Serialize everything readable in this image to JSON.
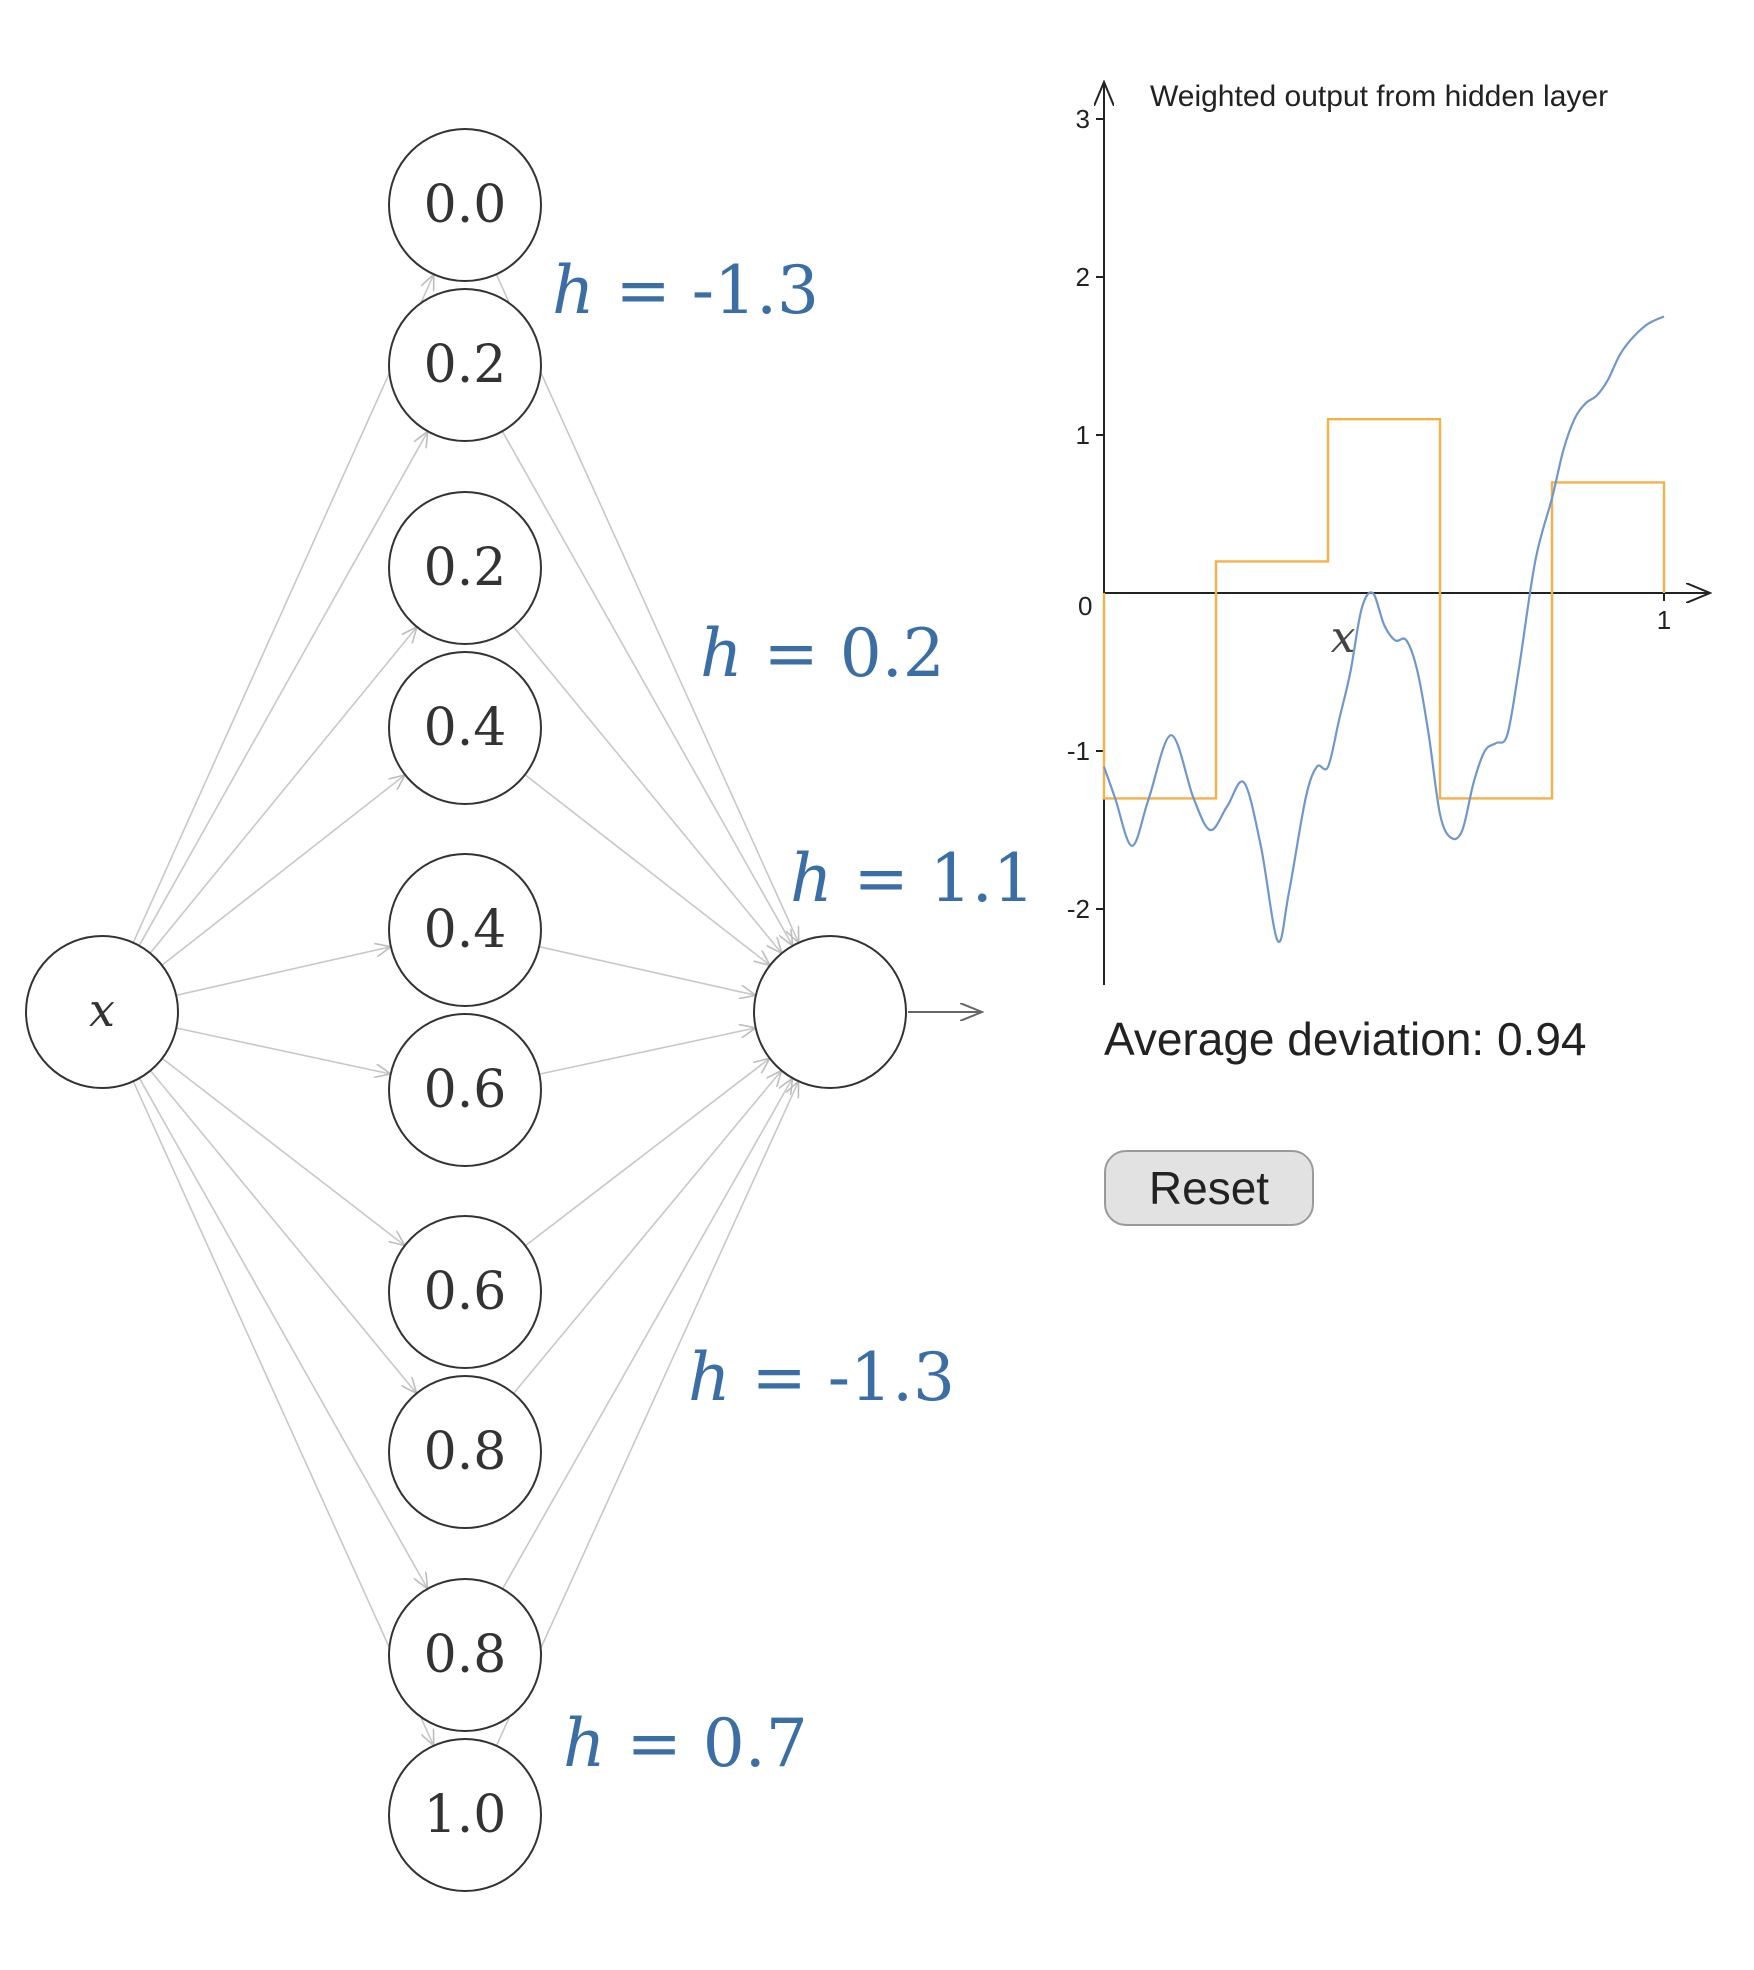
{
  "network": {
    "input_label": "x",
    "hidden_nodes": [
      "0.0",
      "0.2",
      "0.2",
      "0.4",
      "0.4",
      "0.6",
      "0.6",
      "0.8",
      "0.8",
      "1.0"
    ],
    "h_labels": [
      {
        "var": "h",
        "eq": " = ",
        "value": "-1.3"
      },
      {
        "var": "h",
        "eq": " = ",
        "value": "0.2"
      },
      {
        "var": "h",
        "eq": " = ",
        "value": "1.1"
      },
      {
        "var": "h",
        "eq": " = ",
        "value": "-1.3"
      },
      {
        "var": "h",
        "eq": " = ",
        "value": "0.7"
      }
    ]
  },
  "chart_data": {
    "type": "line",
    "title": "Weighted output from hidden layer",
    "xlabel": "x",
    "ylabel": "",
    "xlim": [
      0,
      1
    ],
    "ylim": [
      -2.5,
      3
    ],
    "x_ticks": [
      "1"
    ],
    "y_ticks": [
      "3",
      "2",
      "1",
      "0",
      "-1",
      "-2"
    ],
    "colors": {
      "step": "#f5b04a",
      "target": "#6f97c9"
    },
    "series": [
      {
        "kind": "step",
        "x": [
          0,
          0.2,
          0.2,
          0.4,
          0.4,
          0.6,
          0.6,
          0.8,
          0.8,
          1.0
        ],
        "y": [
          -1.3,
          -1.3,
          0.2,
          0.2,
          1.1,
          1.1,
          -1.3,
          -1.3,
          0.7,
          0.7
        ]
      },
      {
        "kind": "curve",
        "x": [
          0,
          0.02,
          0.05,
          0.08,
          0.12,
          0.16,
          0.19,
          0.22,
          0.25,
          0.28,
          0.31,
          0.33,
          0.36,
          0.38,
          0.4,
          0.42,
          0.44,
          0.46,
          0.48,
          0.5,
          0.52,
          0.54,
          0.56,
          0.58,
          0.6,
          0.62,
          0.64,
          0.66,
          0.68,
          0.7,
          0.72,
          0.74,
          0.77,
          0.8,
          0.82,
          0.84,
          0.86,
          0.88,
          0.9,
          0.92,
          0.94,
          0.97,
          1.0
        ],
        "y": [
          -1.1,
          -1.3,
          -1.6,
          -1.3,
          -0.9,
          -1.3,
          -1.5,
          -1.35,
          -1.2,
          -1.6,
          -2.2,
          -1.9,
          -1.3,
          -1.1,
          -1.1,
          -0.8,
          -0.5,
          -0.1,
          0.0,
          -0.2,
          -0.3,
          -0.3,
          -0.5,
          -0.9,
          -1.4,
          -1.55,
          -1.5,
          -1.2,
          -1.0,
          -0.95,
          -0.9,
          -0.5,
          0.2,
          0.6,
          0.9,
          1.1,
          1.2,
          1.25,
          1.35,
          1.5,
          1.6,
          1.7,
          1.75
        ]
      }
    ]
  },
  "stats": {
    "deviation_label": "Average deviation: 0.94"
  },
  "controls": {
    "reset_label": "Reset"
  }
}
